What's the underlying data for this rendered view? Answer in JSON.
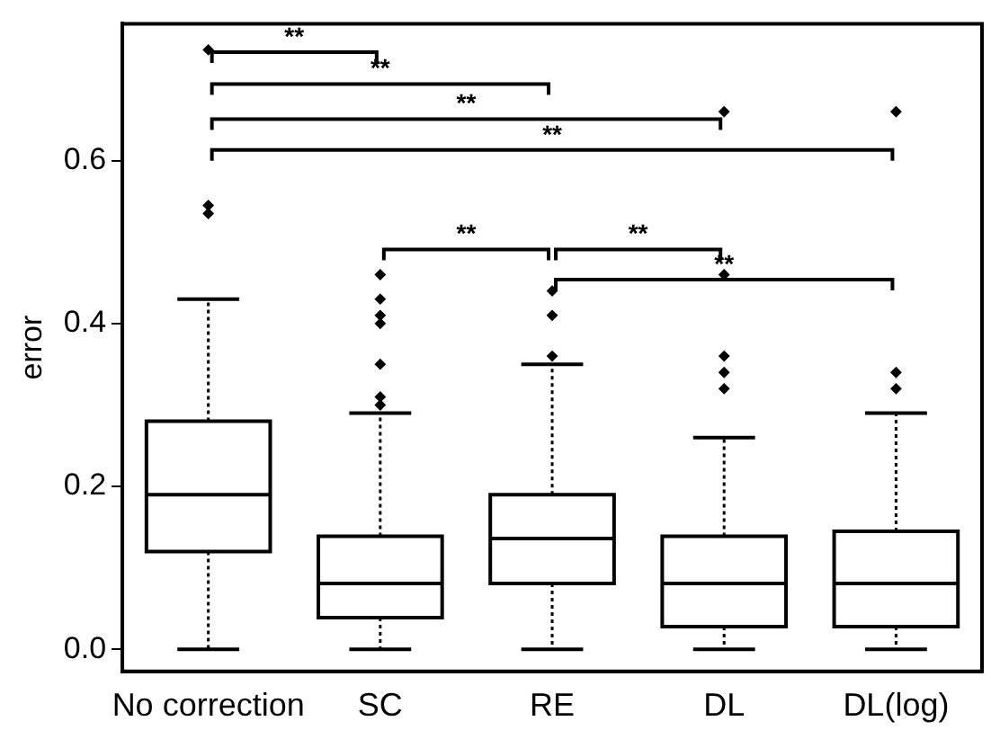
{
  "chart_data": {
    "type": "box",
    "ylabel": "error",
    "categories": [
      "No correction",
      "SC",
      "RE",
      "DL",
      "DL(log)"
    ],
    "boxes": [
      {
        "low": 0,
        "q1": 0.12,
        "median": 0.19,
        "q3": 0.28,
        "high": 0.43,
        "outliers": [
          0.535,
          0.545,
          0.736
        ]
      },
      {
        "low": 0,
        "q1": 0.039,
        "median": 0.081,
        "q3": 0.139,
        "high": 0.29,
        "outliers": [
          0.3,
          0.31,
          0.35,
          0.4,
          0.41,
          0.43,
          0.46
        ]
      },
      {
        "low": 0,
        "q1": 0.081,
        "median": 0.136,
        "q3": 0.19,
        "high": 0.35,
        "outliers": [
          0.36,
          0.41,
          0.44
        ]
      },
      {
        "low": 0,
        "q1": 0.028,
        "median": 0.081,
        "q3": 0.139,
        "high": 0.26,
        "outliers": [
          0.32,
          0.34,
          0.36,
          0.46,
          0.66
        ]
      },
      {
        "low": 0,
        "q1": 0.028,
        "median": 0.081,
        "q3": 0.145,
        "high": 0.29,
        "outliers": [
          0.32,
          0.34,
          0.66
        ]
      }
    ],
    "ylim": [
      -0.027,
      0.768
    ],
    "yticks": [
      {
        "value": 0,
        "label": "0.0"
      },
      {
        "value": 0.2,
        "label": "0.2"
      },
      {
        "value": 0.4,
        "label": "0.4"
      },
      {
        "value": 0.6,
        "label": "0.6"
      }
    ],
    "grid": false,
    "legend": false,
    "marker": "diamond",
    "annotations": [
      "**",
      "**",
      "**",
      "**",
      "**",
      "**",
      "**"
    ]
  }
}
